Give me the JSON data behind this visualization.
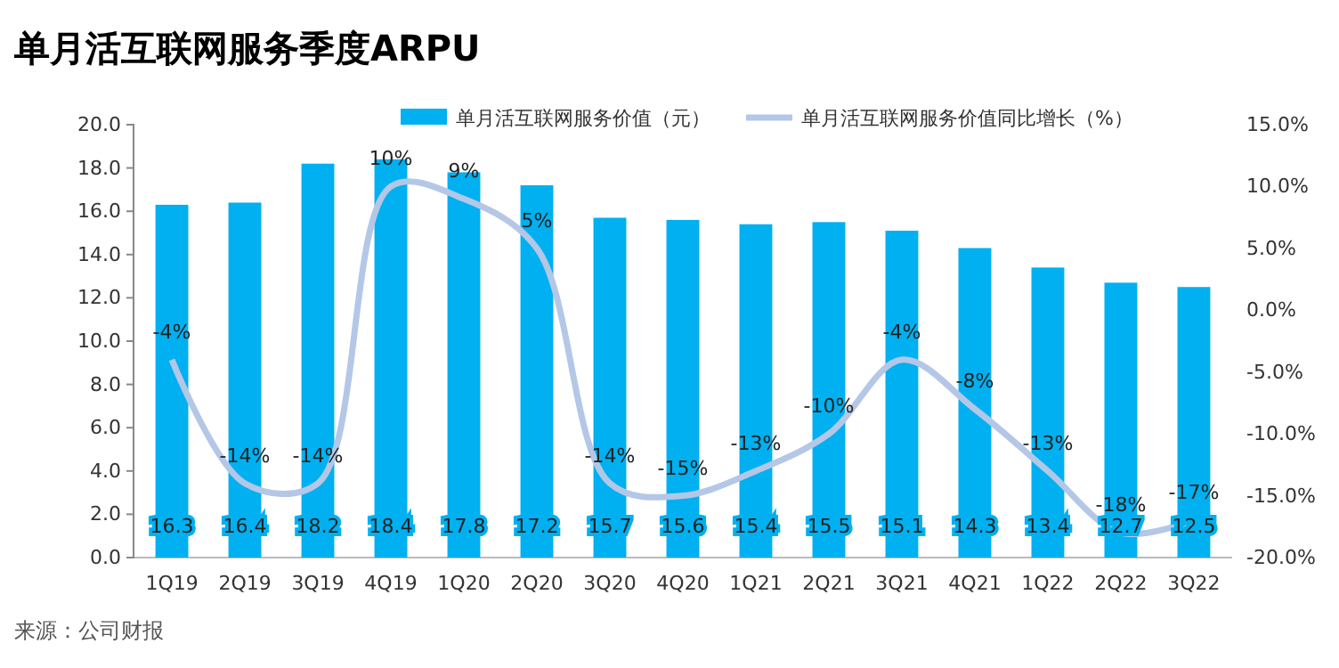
{
  "chart_data": {
    "type": "bar",
    "title": "单月活互联网服务季度ARPU",
    "categories": [
      "1Q19",
      "2Q19",
      "3Q19",
      "4Q19",
      "1Q20",
      "2Q20",
      "3Q20",
      "4Q20",
      "1Q21",
      "2Q21",
      "3Q21",
      "4Q21",
      "1Q22",
      "2Q22",
      "3Q22"
    ],
    "series": [
      {
        "name": "单月活互联网服务价值（元）",
        "color": "#00b0f0",
        "values": [
          16.3,
          16.4,
          18.2,
          18.4,
          17.8,
          17.2,
          15.7,
          15.6,
          15.4,
          15.5,
          15.1,
          14.3,
          13.4,
          12.7,
          12.5
        ]
      },
      {
        "name": "单月活互联网服务价值同比增长（%）",
        "type": "line",
        "axis": "y2",
        "color": "#b4c7e7",
        "values": [
          -4,
          -14,
          -14,
          10,
          9,
          5,
          -14,
          -15,
          -13,
          -10,
          -4,
          -8,
          -13,
          -18,
          -17
        ],
        "value_labels": [
          "-4%",
          "-14%",
          "-14%",
          "10%",
          "9%",
          "5%",
          "-14%",
          "-15%",
          "-13%",
          "-10%",
          "-4%",
          "-8%",
          "-13%",
          "-18%",
          "-17%"
        ]
      }
    ],
    "ylim": [
      0,
      20
    ],
    "yticks": [
      {
        "value": 0,
        "label": "0.0"
      },
      {
        "value": 2,
        "label": "2.0"
      },
      {
        "value": 4,
        "label": "4.0"
      },
      {
        "value": 6,
        "label": "6.0"
      },
      {
        "value": 8,
        "label": "8.0"
      },
      {
        "value": 10,
        "label": "10.0"
      },
      {
        "value": 12,
        "label": "12.0"
      },
      {
        "value": 14,
        "label": "14.0"
      },
      {
        "value": 16,
        "label": "16.0"
      },
      {
        "value": 18,
        "label": "18.0"
      },
      {
        "value": 20,
        "label": "20.0"
      }
    ],
    "y2lim": [
      -20,
      15
    ],
    "y2ticks": [
      {
        "value": -20,
        "label": "-20.0%"
      },
      {
        "value": -15,
        "label": "-15.0%"
      },
      {
        "value": -10,
        "label": "-10.0%"
      },
      {
        "value": -5,
        "label": "-5.0%"
      },
      {
        "value": 0,
        "label": "0.0%"
      },
      {
        "value": 5,
        "label": "5.0%"
      },
      {
        "value": 10,
        "label": "10.0%"
      },
      {
        "value": 15,
        "label": "15.0%"
      }
    ],
    "data_labels": true,
    "legend": "top",
    "grid": false,
    "annotations": [
      "来源：公司财报"
    ]
  }
}
